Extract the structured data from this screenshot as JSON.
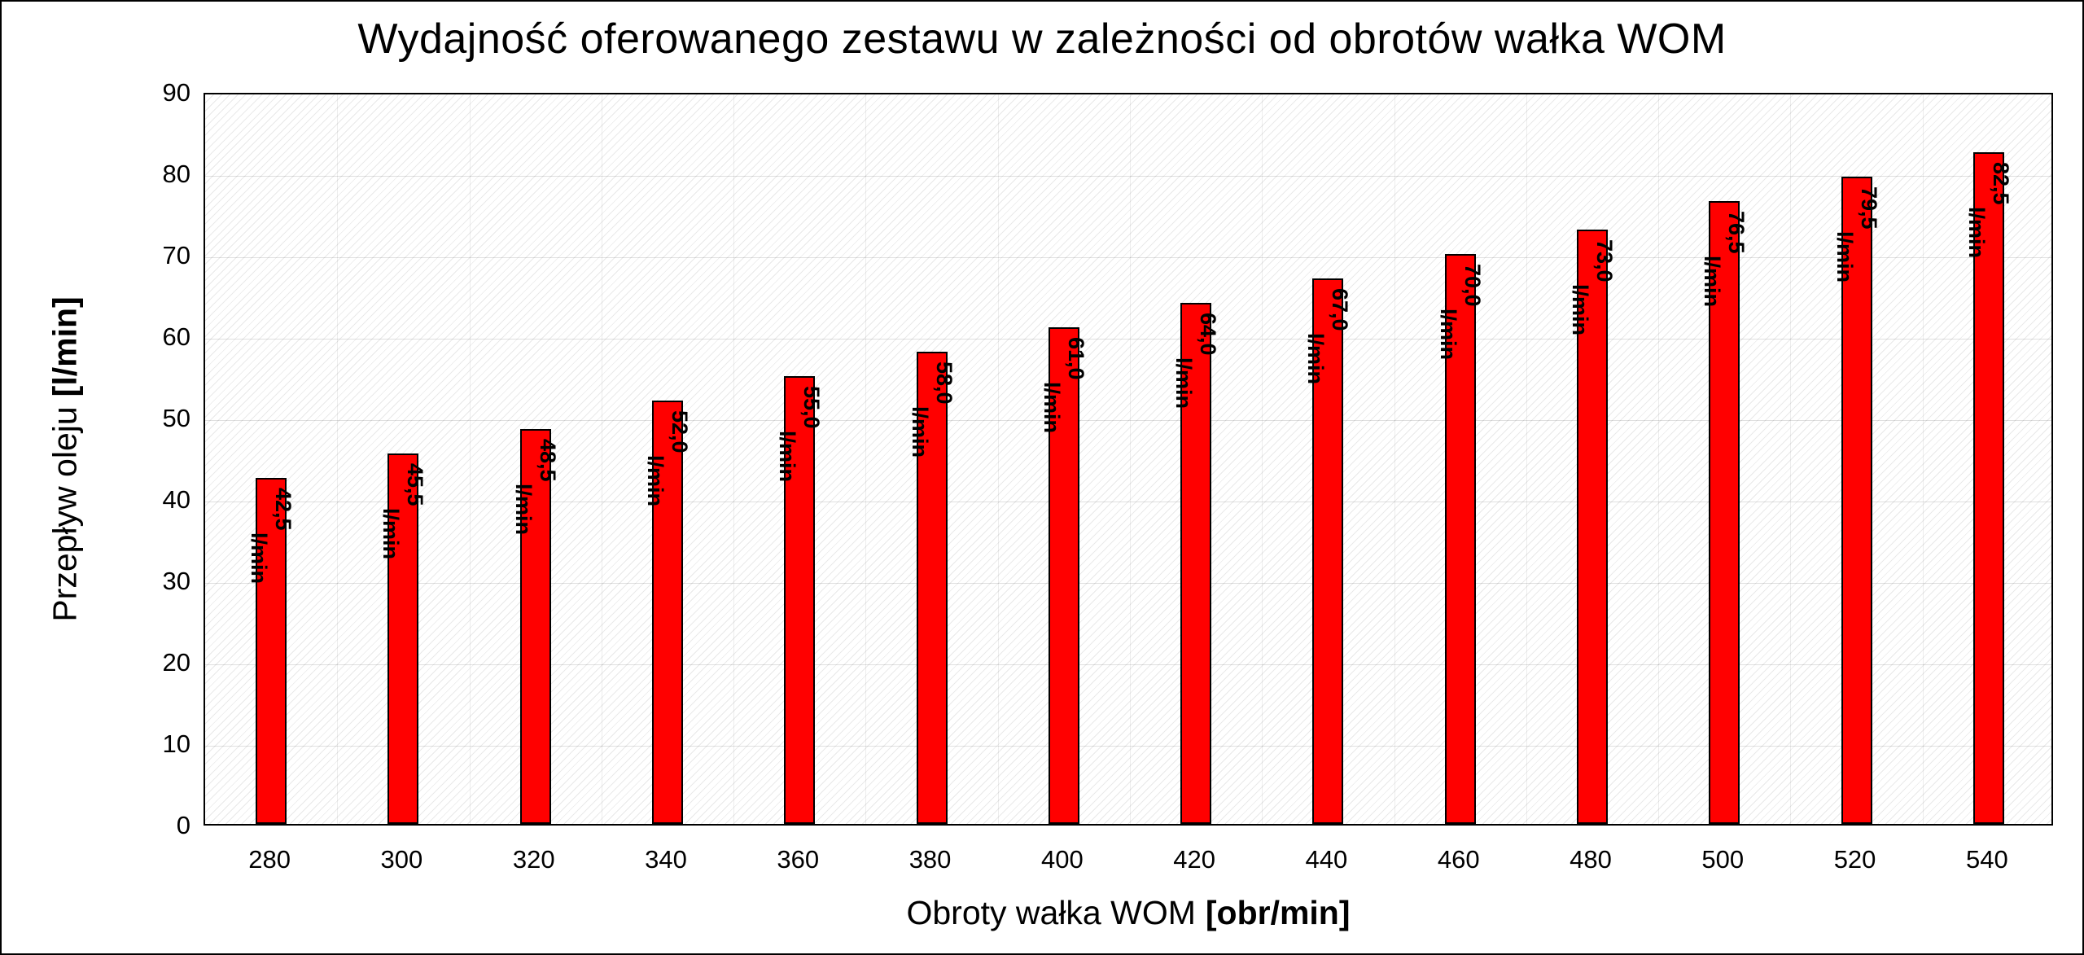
{
  "chart_data": {
    "type": "bar",
    "title": "Wydajność oferowanego zestawu w zależności od obrotów wałka WOM",
    "categories": [
      "280",
      "300",
      "320",
      "340",
      "360",
      "380",
      "400",
      "420",
      "440",
      "460",
      "480",
      "500",
      "520",
      "540"
    ],
    "values": [
      42.5,
      45.5,
      48.5,
      52.0,
      55.0,
      58.0,
      61.0,
      64.0,
      67.0,
      70.0,
      73.0,
      76.5,
      79.5,
      82.5
    ],
    "value_labels": [
      "42,5",
      "45,5",
      "48,5",
      "52,0",
      "55,0",
      "58,0",
      "61,0",
      "64,0",
      "67,0",
      "70,0",
      "73,0",
      "76,5",
      "79,5",
      "82,5"
    ],
    "unit_label": "l/min",
    "xlabel": {
      "text": "Obroty wałka WOM",
      "bold": "[obr/min]"
    },
    "ylabel": {
      "text": "Przepływ oleju",
      "bold": "[l/min]"
    },
    "ylim": [
      0,
      90
    ],
    "ytick_step": 10,
    "yticks": [
      0,
      10,
      20,
      30,
      40,
      50,
      60,
      70,
      80,
      90
    ],
    "bar_color": "#ff0000",
    "bar_border_color": "#000000",
    "label_color": "#000000",
    "grid": true,
    "legend": "none",
    "plot_background": "diagonal-hatch"
  }
}
